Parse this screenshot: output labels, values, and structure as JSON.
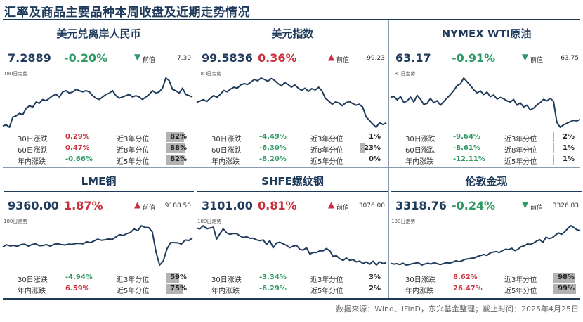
{
  "title": "汇率及商品主要品种本周收盘及近期走势情况",
  "footer": "数据来源：Wind、iFinD，东兴基金整理；截止时间：2025年4月25日",
  "colors": {
    "up": "#c8303c",
    "down": "#2f9a64",
    "line": "#1f3b5c",
    "bar": "#b3b3b3"
  },
  "labels": {
    "prev": "前值",
    "trend": "180日走势"
  },
  "panels": [
    {
      "name": "美元兑离岸人民币",
      "value": "7.2889",
      "change": "-0.20%",
      "dir": "down",
      "arrow": "▼",
      "prev": "7.30",
      "rows": [
        {
          "label": "30日涨跌",
          "change": "0.29%",
          "dir": "up",
          "plabel": "近3年分位",
          "pct": "82%",
          "pct_value": 82
        },
        {
          "label": "60日涨跌",
          "change": "0.47%",
          "dir": "up",
          "plabel": "近8年分位",
          "pct": "88%",
          "pct_value": 88
        },
        {
          "label": "年内涨跌",
          "change": "-0.66%",
          "dir": "down",
          "plabel": "近5年分位",
          "pct": "82%",
          "pct_value": 82
        }
      ]
    },
    {
      "name": "美元指数",
      "value": "99.5836",
      "change": "0.36%",
      "dir": "up",
      "arrow": "▲",
      "prev": "99.23",
      "rows": [
        {
          "label": "30日涨跌",
          "change": "-4.49%",
          "dir": "down",
          "plabel": "近3年分位",
          "pct": "1%",
          "pct_value": 1
        },
        {
          "label": "60日涨跌",
          "change": "-6.30%",
          "dir": "down",
          "plabel": "近8年分位",
          "pct": "23%",
          "pct_value": 23
        },
        {
          "label": "年内涨跌",
          "change": "-8.20%",
          "dir": "down",
          "plabel": "近5年分位",
          "pct": "0%",
          "pct_value": 0
        }
      ]
    },
    {
      "name": "NYMEX WTI原油",
      "value": "63.17",
      "change": "-0.91%",
      "dir": "down",
      "arrow": "▼",
      "prev": "63.75",
      "rows": [
        {
          "label": "30日涨跌",
          "change": "-9.64%",
          "dir": "down",
          "plabel": "近3年分位",
          "pct": "2%",
          "pct_value": 2
        },
        {
          "label": "60日涨跌",
          "change": "-8.61%",
          "dir": "down",
          "plabel": "近8年分位",
          "pct": "1%",
          "pct_value": 1
        },
        {
          "label": "年内涨跌",
          "change": "-12.11%",
          "dir": "down",
          "plabel": "近5年分位",
          "pct": "1%",
          "pct_value": 1
        }
      ]
    },
    {
      "name": "LME铜",
      "value": "9360.00",
      "change": "1.87%",
      "dir": "up",
      "arrow": "▲",
      "prev": "9188.50",
      "rows": [
        {
          "label": "30日涨跌",
          "change": "-4.94%",
          "dir": "down",
          "plabel": "近3年分位",
          "pct": "59%",
          "pct_value": 59
        },
        {
          "label": "年内涨跌",
          "change": "6.59%",
          "dir": "up",
          "plabel": "近5年分位",
          "pct": "75%",
          "pct_value": 75
        }
      ]
    },
    {
      "name": "SHFE螺纹钢",
      "value": "3101.00",
      "change": "0.81%",
      "dir": "up",
      "arrow": "▲",
      "prev": "3076.00",
      "rows": [
        {
          "label": "30日涨跌",
          "change": "-3.34%",
          "dir": "down",
          "plabel": "近3年分位",
          "pct": "3%",
          "pct_value": 3
        },
        {
          "label": "年内涨跌",
          "change": "-6.29%",
          "dir": "down",
          "plabel": "近5年分位",
          "pct": "2%",
          "pct_value": 2
        }
      ]
    },
    {
      "name": "伦敦金现",
      "value": "3318.76",
      "change": "-0.24%",
      "dir": "down",
      "arrow": "▼",
      "prev": "3326.83",
      "rows": [
        {
          "label": "30日涨跌",
          "change": "8.62%",
          "dir": "up",
          "plabel": "近3年分位",
          "pct": "98%",
          "pct_value": 98
        },
        {
          "label": "年内涨跌",
          "change": "26.47%",
          "dir": "up",
          "plabel": "近5年分位",
          "pct": "99%",
          "pct_value": 99
        }
      ]
    }
  ],
  "chart_data": [
    {
      "type": "line",
      "title": "美元兑离岸人民币 180日走势",
      "values": [
        7.06,
        7.07,
        7.05,
        7.13,
        7.14,
        7.16,
        7.15,
        7.2,
        7.22,
        7.21,
        7.25,
        7.24,
        7.27,
        7.26,
        7.28,
        7.3,
        7.31,
        7.29,
        7.33,
        7.34,
        7.32,
        7.33,
        7.35,
        7.34,
        7.33,
        7.34,
        7.33,
        7.3,
        7.28,
        7.27,
        7.29,
        7.31,
        7.32,
        7.34,
        7.3,
        7.28,
        7.29,
        7.3,
        7.31,
        7.29,
        7.3,
        7.29,
        7.27,
        7.29,
        7.31,
        7.34,
        7.32,
        7.33,
        7.36,
        7.44,
        7.42,
        7.35,
        7.34,
        7.32,
        7.36,
        7.31,
        7.3,
        7.29
      ]
    },
    {
      "type": "line",
      "title": "美元指数 180日走势",
      "values": [
        104.0,
        104.3,
        104.6,
        104.2,
        104.9,
        105.5,
        105.1,
        105.8,
        106.6,
        106.3,
        106.9,
        107.3,
        107.1,
        107.8,
        108.1,
        107.9,
        108.4,
        109.0,
        108.7,
        109.3,
        109.0,
        108.6,
        109.2,
        108.8,
        108.1,
        107.6,
        108.3,
        107.9,
        107.3,
        107.8,
        107.1,
        106.6,
        107.1,
        106.4,
        107.0,
        106.7,
        107.3,
        106.5,
        104.9,
        104.3,
        103.6,
        104.1,
        103.9,
        103.3,
        103.9,
        104.2,
        103.8,
        103.4,
        103.6,
        103.0,
        100.9,
        100.1,
        99.3,
        98.6,
        99.6,
        99.2,
        99.6
      ]
    },
    {
      "type": "line",
      "title": "NYMEX WTI原油 180日走势",
      "values": [
        71.5,
        71.9,
        70.6,
        71.8,
        69.6,
        70.2,
        71.6,
        69.8,
        72.3,
        70.9,
        68.8,
        69.3,
        71.1,
        69.5,
        70.3,
        68.6,
        70.0,
        71.3,
        72.6,
        74.1,
        75.9,
        76.6,
        78.8,
        77.4,
        76.0,
        74.4,
        73.2,
        74.0,
        72.6,
        73.5,
        71.8,
        72.4,
        70.9,
        71.5,
        71.0,
        70.2,
        69.8,
        70.7,
        68.6,
        69.5,
        67.9,
        68.6,
        66.8,
        67.5,
        68.7,
        69.6,
        70.8,
        70.2,
        71.2,
        70.0,
        62.1,
        60.3,
        61.2,
        61.8,
        62.4,
        62.9,
        62.7,
        63.2
      ]
    },
    {
      "type": "line",
      "title": "LME铜 180日走势",
      "values": [
        8950,
        9050,
        9000,
        9020,
        8980,
        9060,
        9080,
        8990,
        9060,
        9100,
        9010,
        9020,
        9060,
        8990,
        9070,
        9100,
        9060,
        9040,
        9080,
        9070,
        9110,
        9120,
        9100,
        9190,
        9150,
        9230,
        9310,
        9260,
        9280,
        9320,
        9300,
        9410,
        9520,
        9480,
        9560,
        9620,
        9780,
        9700,
        9930,
        9850,
        9840,
        9640,
        8720,
        8120,
        8310,
        8860,
        9150,
        9150,
        9140,
        9090,
        9270,
        9250,
        9360
      ]
    },
    {
      "type": "line",
      "title": "SHFE螺纹钢 180日走势",
      "values": [
        3540,
        3530,
        3570,
        3530,
        3540,
        3550,
        3400,
        3470,
        3530,
        3480,
        3460,
        3470,
        3470,
        3440,
        3420,
        3430,
        3410,
        3410,
        3390,
        3380,
        3390,
        3330,
        3380,
        3290,
        3350,
        3360,
        3340,
        3320,
        3290,
        3310,
        3320,
        3270,
        3260,
        3290,
        3210,
        3230,
        3230,
        3250,
        3250,
        3280,
        3250,
        3180,
        3190,
        3150,
        3130,
        3160,
        3130,
        3140,
        3110,
        3120,
        3090,
        3110,
        3080,
        3120,
        3070,
        3110,
        3090,
        3100
      ]
    },
    {
      "type": "line",
      "title": "伦敦金现 180日走势",
      "values": [
        2640,
        2620,
        2630,
        2610,
        2640,
        2600,
        2610,
        2630,
        2640,
        2650,
        2600,
        2620,
        2640,
        2620,
        2650,
        2630,
        2610,
        2630,
        2650,
        2640,
        2660,
        2690,
        2670,
        2690,
        2720,
        2730,
        2740,
        2750,
        2780,
        2800,
        2820,
        2800,
        2850,
        2870,
        2880,
        2860,
        2900,
        2930,
        2920,
        2950,
        2900,
        2930,
        2980,
        3000,
        3040,
        3030,
        3060,
        3100,
        3130,
        3070,
        3180,
        3150,
        3170,
        3220,
        3270,
        3240,
        3290,
        3360,
        3420,
        3380,
        3330,
        3320
      ]
    }
  ]
}
